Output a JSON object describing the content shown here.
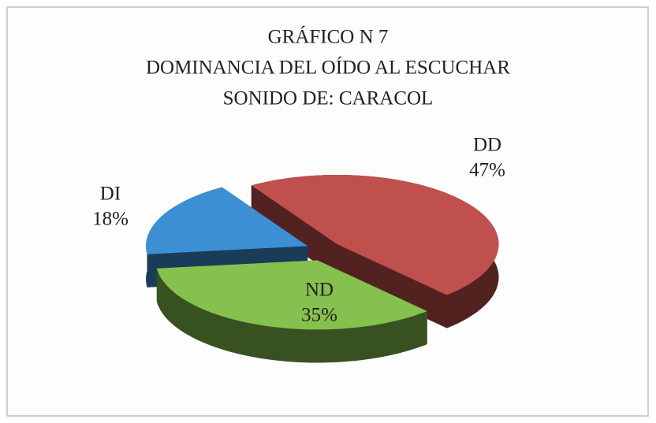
{
  "chart_data": {
    "type": "pie",
    "title": [
      "GRÁFICO N  7",
      "DOMINANCIA DEL OÍDO AL ESCUCHAR",
      "SONIDO DE: CARACOL"
    ],
    "categories": [
      "DD",
      "ND",
      "DI"
    ],
    "values": [
      47,
      35,
      18
    ],
    "value_labels": [
      "47%",
      "35%",
      "18%"
    ],
    "colors": [
      "#c0504d",
      "#86c04e",
      "#3d8fd4"
    ]
  }
}
